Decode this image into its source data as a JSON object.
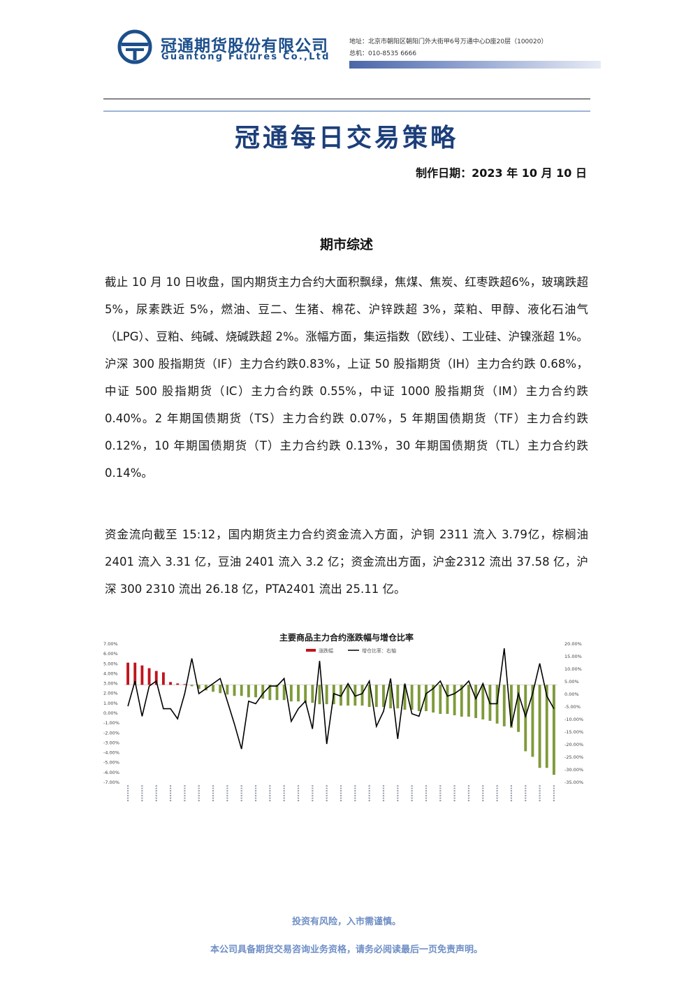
{
  "header": {
    "company_cn": "冠通期货股份有限公司",
    "company_en": "Guantong Futures Co.,Ltd",
    "address": "地址：北京市朝阳区朝阳门外大街甲6号万通中心D座20层（100020）",
    "phone": "总机：010-8535 6666",
    "brand_color": "#1c4f8c"
  },
  "title": "冠通每日交易策略",
  "make_date": "制作日期：2023 年 10 月 10 日",
  "section_title": "期市综述",
  "paragraphs": [
    "截止 10 月 10 日收盘，国内期货主力合约大面积飘绿，焦煤、焦炭、红枣跌超6%，玻璃跌超 5%，尿素跌近 5%，燃油、豆二、生猪、棉花、沪锌跌超 3%，菜粕、甲醇、液化石油气（LPG）、豆粕、纯碱、烧碱跌超 2%。涨幅方面，集运指数（欧线）、工业硅、沪镍涨超 1%。沪深 300 股指期货（IF）主力合约跌0.83%，上证 50 股指期货（IH）主力合约跌 0.68%，中证 500 股指期货（IC）主力合约跌 0.55%，中证 1000 股指期货（IM）主力合约跌 0.40%。2 年期国债期货（TS）主力合约跌 0.07%，5 年期国债期货（TF）主力合约跌 0.12%，10 年期国债期货（T）主力合约跌 0.13%，30 年期国债期货（TL）主力合约跌0.14%。",
    "资金流向截至 15:12，国内期货主力合约资金流入方面，沪铜 2311 流入 3.79亿，棕榈油 2401 流入 3.31 亿，豆油 2401 流入 3.2 亿；资金流出方面，沪金2312 流出 37.58 亿，沪深 300 2310 流出 26.18 亿，PTA2401 流出 25.11 亿。"
  ],
  "chart_data": {
    "type": "bar",
    "title": "主要商品主力合约涨跌幅与增仓比率",
    "legend": [
      "涨跌幅",
      "增仓比率：右轴"
    ],
    "legend_position": "top-left",
    "y_left": {
      "ticks": [
        "7.00%",
        "6.00%",
        "5.00%",
        "4.00%",
        "3.00%",
        "2.00%",
        "1.00%",
        "0.00%",
        "-1.00%",
        "-2.00%",
        "-3.00%",
        "-4.00%",
        "-5.00%",
        "-6.00%",
        "-7.00%"
      ],
      "ylim": [
        -7,
        3
      ]
    },
    "y_right": {
      "ticks": [
        "20.00%",
        "15.00%",
        "10.00%",
        "5.00%",
        "0.00%",
        "-5.00%",
        "-10.00%",
        "-15.00%",
        "-20.00%",
        "-25.00%",
        "-30.00%",
        "-35.00%"
      ],
      "ylim": [
        -35,
        20
      ]
    },
    "bar_up_color": "#c0141c",
    "bar_down_color": "#7f9a3a",
    "line_color": "#000000",
    "change_pct": [
      1.6,
      1.6,
      1.4,
      1.2,
      1.0,
      0.9,
      0.2,
      0.1,
      0.05,
      -0.1,
      -0.3,
      -0.4,
      -0.5,
      -0.6,
      -0.7,
      -0.8,
      -0.8,
      -0.9,
      -0.9,
      -1.0,
      -1.1,
      -1.1,
      -1.1,
      -1.2,
      -1.2,
      -1.3,
      -1.3,
      -1.4,
      -1.4,
      -1.4,
      -1.5,
      -1.5,
      -1.5,
      -1.5,
      -1.6,
      -1.6,
      -1.6,
      -1.7,
      -1.7,
      -1.8,
      -1.8,
      -1.9,
      -1.9,
      -2.0,
      -2.1,
      -2.1,
      -2.2,
      -2.3,
      -2.3,
      -2.4,
      -2.5,
      -2.6,
      -2.8,
      -3.0,
      -3.1,
      -3.4,
      -4.8,
      -5.2,
      -6.0,
      -6.0,
      -6.5
    ],
    "oi_change_pct": [
      -5,
      5,
      -9,
      3,
      5,
      -6,
      -6,
      -10,
      0,
      14,
      0,
      2,
      4,
      6,
      -3,
      -12,
      -22,
      -3,
      -4,
      0,
      3,
      3,
      6,
      -11,
      -6,
      -3,
      -14,
      13,
      -20,
      0,
      -1,
      4,
      -1,
      0,
      5,
      -13,
      -7,
      6,
      -18,
      4,
      -8,
      -9,
      0,
      2,
      5,
      -1,
      0,
      2,
      5,
      -2,
      4,
      -4,
      -4,
      18,
      -13,
      0,
      -9,
      0,
      12,
      -1,
      -6
    ]
  },
  "footer": {
    "risk": "投资有风险，入市需谨慎。",
    "disclaimer": "本公司具备期货交易咨询业务资格，请务必阅读最后一页免责声明。",
    "color": "#6f8fc6"
  }
}
